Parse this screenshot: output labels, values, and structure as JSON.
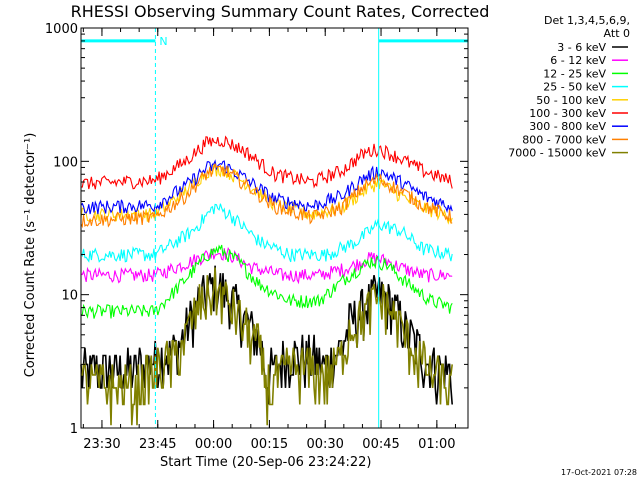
{
  "chart_data": {
    "type": "line",
    "title": "RHESSI Observing Summary Count Rates, Corrected",
    "xlabel": "Start Time (20-Sep-06 23:24:22)",
    "ylabel": "Corrected Count Rate (s⁻¹ detector⁻¹)",
    "y_scale": "log",
    "ylim": [
      1,
      1000
    ],
    "x_unit": "minutes after 20-Sep-06 23:24:22",
    "xlim": [
      0,
      104
    ],
    "x_ticks": [
      {
        "label": "23:30",
        "minute": 5.63
      },
      {
        "label": "23:45",
        "minute": 20.63
      },
      {
        "label": "00:00",
        "minute": 35.63
      },
      {
        "label": "00:15",
        "minute": 50.63
      },
      {
        "label": "00:30",
        "minute": 65.63
      },
      {
        "label": "00:45",
        "minute": 80.63
      },
      {
        "label": "01:00",
        "minute": 95.63
      }
    ],
    "y_ticks": [
      {
        "label": "1",
        "value": 1
      },
      {
        "label": "10",
        "value": 10
      },
      {
        "label": "100",
        "value": 100
      },
      {
        "label": "1000",
        "value": 1000
      }
    ],
    "legend_header": [
      "Det 1,3,4,5,6,9,",
      "Att 0"
    ],
    "legend_position": "right, outside plot",
    "night_marker": {
      "label": "N"
    },
    "shaded_intervals": [
      {
        "type": "night",
        "start": 0,
        "end": 20,
        "bar_value": 800,
        "color": "#00ffff"
      },
      {
        "type": "night",
        "start": 80,
        "end": 104,
        "bar_value": 800,
        "color": "#00ffff"
      }
    ],
    "vertical_markers": [
      {
        "x": 0,
        "style": "solid"
      },
      {
        "x": 20,
        "style": "dashed"
      },
      {
        "x": 80,
        "style": "solid"
      },
      {
        "x": 104,
        "style": "dashed"
      }
    ],
    "series": [
      {
        "name": "3 - 6 keV",
        "color": "#000000",
        "x": [
          0,
          14,
          26,
          30,
          32,
          36,
          38,
          42,
          48,
          50,
          56,
          62,
          66,
          70,
          72,
          76,
          79,
          81,
          84,
          88,
          94,
          100
        ],
        "y": [
          2.7,
          2.7,
          4,
          7,
          9,
          12,
          11,
          8,
          4.5,
          2.5,
          3.5,
          3.5,
          3,
          4,
          6,
          8,
          10,
          10,
          8,
          5,
          3,
          2.5
        ]
      },
      {
        "name": "6 - 12 keV",
        "color": "#ff00ff",
        "x": [
          0,
          20,
          30,
          36,
          40,
          46,
          54,
          64,
          72,
          78,
          82,
          86,
          92,
          100
        ],
        "y": [
          14,
          14,
          18,
          21,
          20,
          16,
          14,
          14,
          16,
          19,
          18,
          16,
          14,
          14
        ]
      },
      {
        "name": "12 - 25 keV",
        "color": "#00ff00",
        "x": [
          0,
          20,
          28,
          34,
          37,
          42,
          48,
          56,
          64,
          72,
          78,
          82,
          88,
          94,
          100
        ],
        "y": [
          7.5,
          7.5,
          13,
          20,
          22,
          18,
          12,
          9,
          9,
          14,
          18,
          17,
          12,
          9,
          8
        ]
      },
      {
        "name": "25 - 50 keV",
        "color": "#00ffff",
        "x": [
          0,
          20,
          30,
          36,
          40,
          48,
          56,
          66,
          74,
          80,
          86,
          92,
          100
        ],
        "y": [
          20,
          20,
          30,
          46,
          40,
          25,
          20,
          20,
          25,
          34,
          30,
          22,
          20
        ]
      },
      {
        "name": "50 - 100 keV",
        "color": "#ffd000",
        "x": [
          0,
          20,
          28,
          34,
          38,
          44,
          52,
          62,
          70,
          76,
          80,
          86,
          92,
          100
        ],
        "y": [
          40,
          40,
          60,
          85,
          88,
          70,
          48,
          40,
          45,
          60,
          70,
          55,
          45,
          38
        ]
      },
      {
        "name": "100 - 300 keV",
        "color": "#ff0000",
        "x": [
          0,
          20,
          28,
          34,
          38,
          44,
          52,
          62,
          70,
          76,
          80,
          86,
          92,
          100
        ],
        "y": [
          68,
          72,
          100,
          140,
          145,
          120,
          80,
          70,
          85,
          115,
          125,
          105,
          85,
          70
        ]
      },
      {
        "name": "300 - 800 keV",
        "color": "#0000ff",
        "x": [
          0,
          20,
          28,
          34,
          38,
          44,
          52,
          62,
          70,
          76,
          80,
          86,
          92,
          100
        ],
        "y": [
          45,
          47,
          65,
          90,
          95,
          75,
          52,
          46,
          55,
          75,
          85,
          70,
          55,
          45
        ]
      },
      {
        "name": "800 - 7000 keV",
        "color": "#ff8000",
        "x": [
          0,
          20,
          28,
          34,
          38,
          44,
          52,
          62,
          70,
          76,
          80,
          86,
          92,
          100
        ],
        "y": [
          36,
          38,
          55,
          82,
          88,
          68,
          46,
          38,
          45,
          65,
          74,
          60,
          47,
          38
        ]
      },
      {
        "name": "7000 - 15000 keV",
        "color": "#808000",
        "x": [
          0,
          14,
          26,
          30,
          32,
          36,
          38,
          42,
          48,
          50,
          56,
          62,
          66,
          70,
          72,
          76,
          79,
          81,
          84,
          88,
          94,
          100
        ],
        "y": [
          2.2,
          2,
          3.5,
          6.5,
          8.5,
          11,
          10,
          7,
          4,
          2,
          2.8,
          2.8,
          2.4,
          3.5,
          5.5,
          7,
          9,
          9,
          7,
          4.5,
          2.5,
          2
        ]
      }
    ]
  },
  "footer": {
    "timestamp": "17-Oct-2021 07:28"
  }
}
